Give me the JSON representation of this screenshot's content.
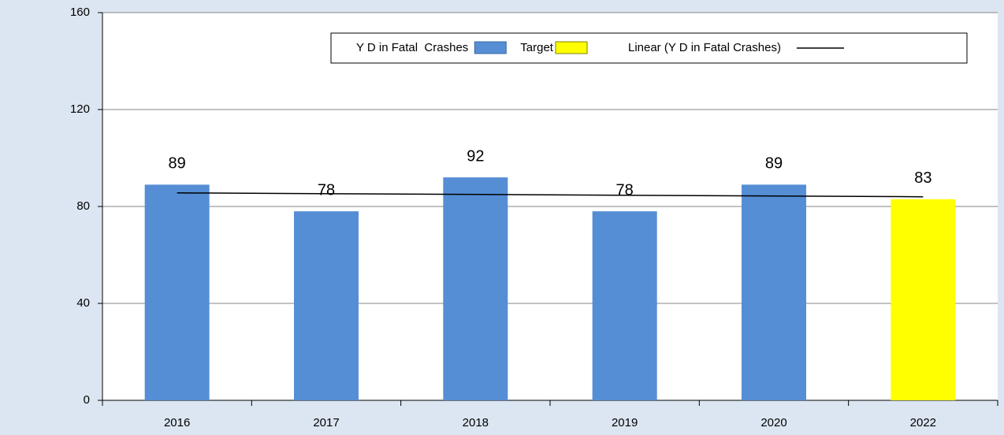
{
  "chart_data": {
    "type": "bar",
    "categories": [
      "2016",
      "2017",
      "2018",
      "2019",
      "2020",
      "2022"
    ],
    "series": [
      {
        "name": "Y D in Fatal  Crashes",
        "color": "#558ed5",
        "values": [
          89,
          78,
          92,
          78,
          89,
          null
        ]
      },
      {
        "name": "Target",
        "color": "#ffff00",
        "values": [
          null,
          null,
          null,
          null,
          null,
          83
        ]
      }
    ],
    "trend": {
      "name": "Linear (Y D in Fatal Crashes)",
      "color": "#000000",
      "values": [
        85.6,
        84.0
      ]
    },
    "ylim": [
      0,
      160
    ],
    "yticks": [
      0,
      40,
      80,
      120,
      160
    ],
    "grid": true,
    "legend": "top-right"
  }
}
